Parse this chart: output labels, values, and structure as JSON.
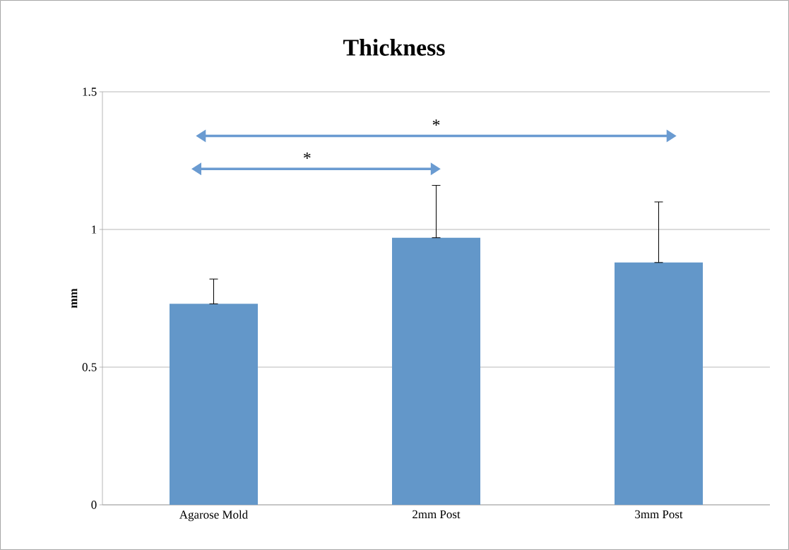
{
  "chart_data": {
    "type": "bar",
    "title": "Thickness",
    "ylabel": "mm",
    "categories": [
      "Agarose Mold",
      "2mm Post",
      "3mm Post"
    ],
    "values": [
      0.73,
      0.97,
      0.88
    ],
    "errors": [
      [
        0.73,
        0.82
      ],
      [
        0.97,
        1.16
      ],
      [
        0.88,
        1.1
      ]
    ],
    "color": "#6397c9",
    "ylim": [
      0,
      1.5
    ],
    "yticks": [
      0,
      0.5,
      1,
      1.5
    ],
    "grid": "y",
    "annotations": [
      "*",
      "*"
    ]
  }
}
